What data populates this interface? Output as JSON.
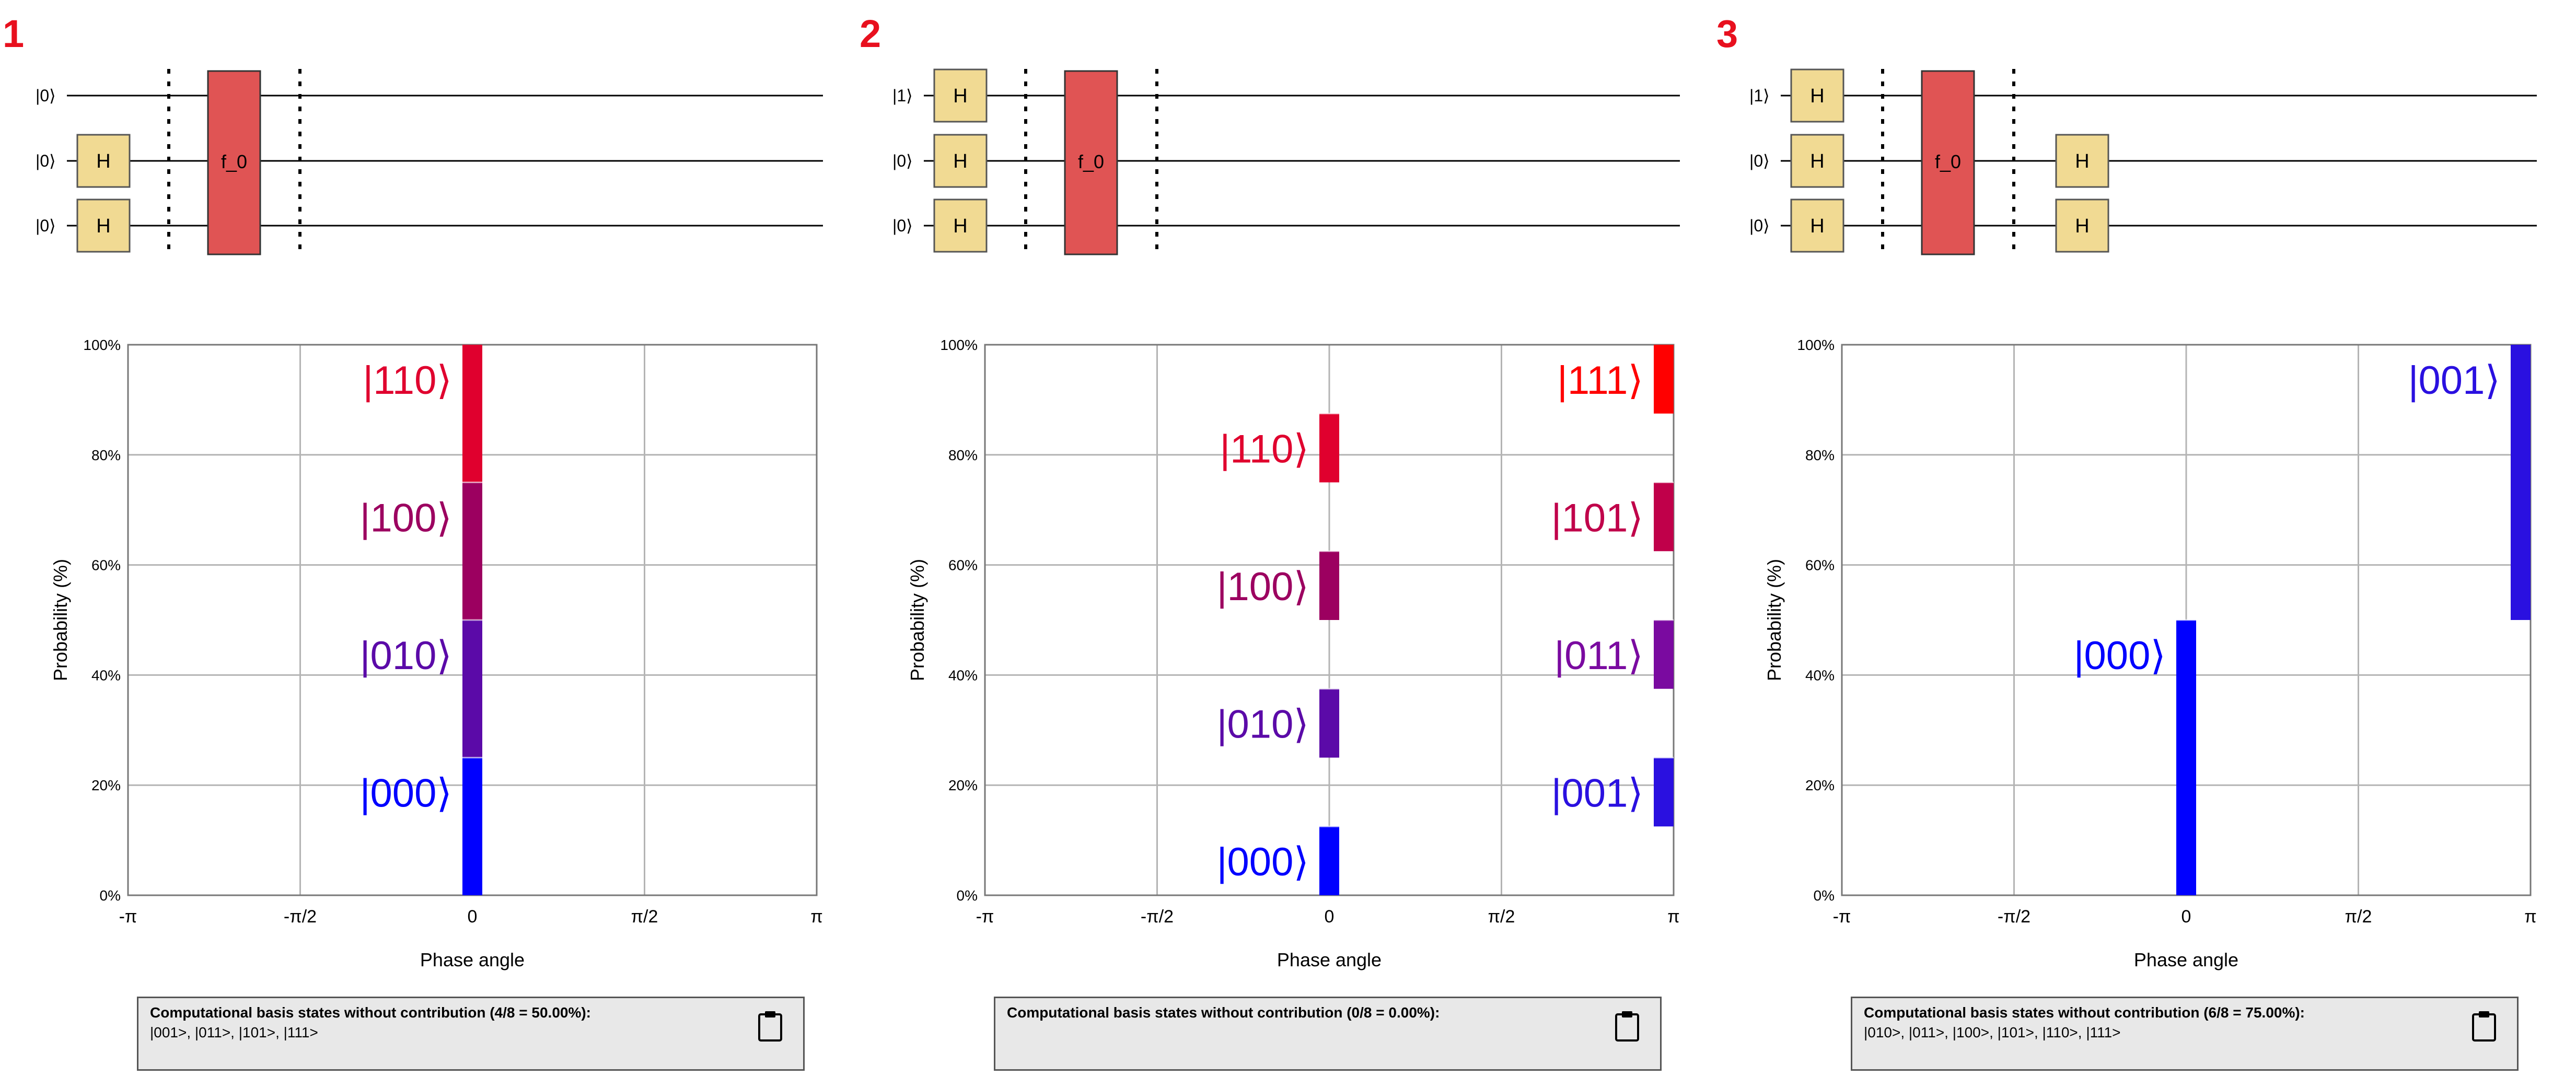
{
  "panels": [
    {
      "number": "1",
      "circuit": {
        "qubits": [
          {
            "label": "|0⟩",
            "gates_before": []
          },
          {
            "label": "|0⟩",
            "gates_before": [
              "H"
            ]
          },
          {
            "label": "|0⟩",
            "gates_before": [
              "H"
            ]
          }
        ],
        "oracle_label": "f_0",
        "gates_after": [
          [],
          [],
          []
        ]
      },
      "chart_data": {
        "type": "bar",
        "xlabel": "Phase angle",
        "ylabel": "Probability (%)",
        "xticks": [
          "-π",
          "-π/2",
          "0",
          "π/2",
          "π"
        ],
        "yticks": [
          "0%",
          "20%",
          "40%",
          "60%",
          "80%",
          "100%"
        ],
        "xlim": [
          -3.14159,
          3.14159
        ],
        "ylim": [
          0,
          100
        ],
        "grid": true,
        "bars": [
          {
            "phase": 0,
            "label": "|000⟩",
            "start": 0,
            "end": 25,
            "color": "#0000ff"
          },
          {
            "phase": 0,
            "label": "|010⟩",
            "start": 25,
            "end": 50,
            "color": "#5b0aa8"
          },
          {
            "phase": 0,
            "label": "|100⟩",
            "start": 50,
            "end": 75,
            "color": "#9c0060"
          },
          {
            "phase": 0,
            "label": "|110⟩",
            "start": 75,
            "end": 100,
            "color": "#e0002e"
          }
        ]
      },
      "note": {
        "title": "Computational basis states without contribution (4/8 = 50.00%):",
        "states": "|001>, |011>, |101>, |111>"
      }
    },
    {
      "number": "2",
      "circuit": {
        "qubits": [
          {
            "label": "|1⟩",
            "gates_before": [
              "H"
            ]
          },
          {
            "label": "|0⟩",
            "gates_before": [
              "H"
            ]
          },
          {
            "label": "|0⟩",
            "gates_before": [
              "H"
            ]
          }
        ],
        "oracle_label": "f_0",
        "gates_after": [
          [],
          [],
          []
        ]
      },
      "chart_data": {
        "type": "bar",
        "xlabel": "Phase angle",
        "ylabel": "Probability (%)",
        "xticks": [
          "-π",
          "-π/2",
          "0",
          "π/2",
          "π"
        ],
        "yticks": [
          "0%",
          "20%",
          "40%",
          "60%",
          "80%",
          "100%"
        ],
        "xlim": [
          -3.14159,
          3.14159
        ],
        "ylim": [
          0,
          100
        ],
        "grid": true,
        "bars": [
          {
            "phase": 0,
            "label": "|000⟩",
            "start": 0,
            "end": 12.5,
            "color": "#0000ff"
          },
          {
            "phase": 0,
            "label": "|010⟩",
            "start": 25,
            "end": 37.5,
            "color": "#5b0aa8"
          },
          {
            "phase": 0,
            "label": "|100⟩",
            "start": 50,
            "end": 62.5,
            "color": "#9c0060"
          },
          {
            "phase": 0,
            "label": "|110⟩",
            "start": 75,
            "end": 87.5,
            "color": "#e0002e"
          },
          {
            "phase": 3.14159,
            "label": "|001⟩",
            "start": 12.5,
            "end": 25,
            "color": "#2a10e0"
          },
          {
            "phase": 3.14159,
            "label": "|011⟩",
            "start": 37.5,
            "end": 50,
            "color": "#7a0aa0"
          },
          {
            "phase": 3.14159,
            "label": "|101⟩",
            "start": 62.5,
            "end": 75,
            "color": "#c0004a"
          },
          {
            "phase": 3.14159,
            "label": "|111⟩",
            "start": 87.5,
            "end": 100,
            "color": "#ff0000"
          }
        ]
      },
      "note": {
        "title": "Computational basis states without contribution (0/8 = 0.00%):",
        "states": ""
      }
    },
    {
      "number": "3",
      "circuit": {
        "qubits": [
          {
            "label": "|1⟩",
            "gates_before": [
              "H"
            ]
          },
          {
            "label": "|0⟩",
            "gates_before": [
              "H"
            ]
          },
          {
            "label": "|0⟩",
            "gates_before": [
              "H"
            ]
          }
        ],
        "oracle_label": "f_0",
        "gates_after": [
          [],
          [
            "H"
          ],
          [
            "H"
          ]
        ]
      },
      "chart_data": {
        "type": "bar",
        "xlabel": "Phase angle",
        "ylabel": "Probability (%)",
        "xticks": [
          "-π",
          "-π/2",
          "0",
          "π/2",
          "π"
        ],
        "yticks": [
          "0%",
          "20%",
          "40%",
          "60%",
          "80%",
          "100%"
        ],
        "xlim": [
          -3.14159,
          3.14159
        ],
        "ylim": [
          0,
          100
        ],
        "grid": true,
        "bars": [
          {
            "phase": 0,
            "label": "|000⟩",
            "start": 0,
            "end": 50,
            "color": "#0000ff"
          },
          {
            "phase": 3.14159,
            "label": "|001⟩",
            "start": 50,
            "end": 100,
            "color": "#2a10e0"
          }
        ]
      },
      "note": {
        "title": "Computational basis states without contribution (6/8 = 75.00%):",
        "states": "|010>, |011>, |100>, |101>, |110>, |111>"
      }
    }
  ],
  "colors": {
    "panel_number": "#e8101e",
    "gate_h_fill": "#f1da93",
    "gate_oracle_fill": "#e05454",
    "grid": "#b4b4b4",
    "note_bg": "#e8e8e8"
  }
}
